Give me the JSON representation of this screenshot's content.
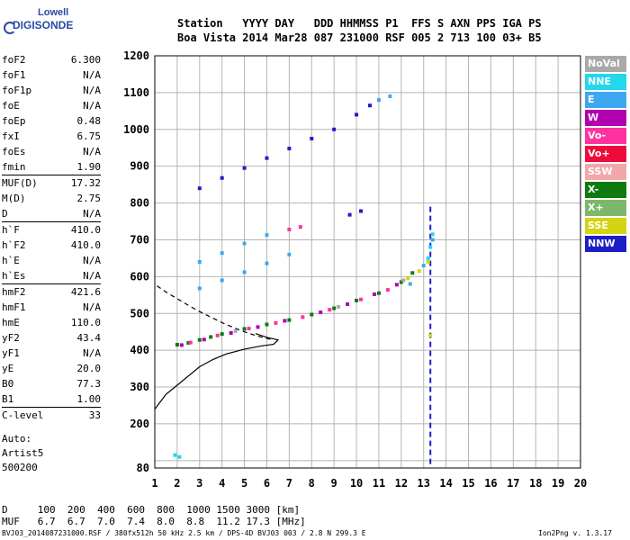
{
  "logo": {
    "line1": "Lowell",
    "line2": "DIGISONDE"
  },
  "header": {
    "row1": "Station   YYYY DAY   DDD HHMMSS P1  FFS S AXN PPS IGA PS",
    "row2": "Boa Vista 2014 Mar28 087 231000 RSF 005 2 713 100 03+ B5"
  },
  "params": [
    {
      "name": "foF2",
      "value": "6.300"
    },
    {
      "name": "foF1",
      "value": "N/A"
    },
    {
      "name": "foF1p",
      "value": "N/A"
    },
    {
      "name": "foE",
      "value": "N/A"
    },
    {
      "name": "foEp",
      "value": "0.48"
    },
    {
      "name": "fxI",
      "value": "6.75"
    },
    {
      "name": "foEs",
      "value": "N/A"
    },
    {
      "name": "fmin",
      "value": "1.90"
    },
    {
      "name": "MUF(D)",
      "value": "17.32",
      "sep": true
    },
    {
      "name": "M(D)",
      "value": "2.75"
    },
    {
      "name": "D",
      "value": "N/A"
    },
    {
      "name": "h`F",
      "value": "410.0",
      "sep": true
    },
    {
      "name": "h`F2",
      "value": "410.0"
    },
    {
      "name": "h`E",
      "value": "N/A"
    },
    {
      "name": "h`Es",
      "value": "N/A"
    },
    {
      "name": "hmF2",
      "value": "421.6",
      "sep": true
    },
    {
      "name": "hmF1",
      "value": "N/A"
    },
    {
      "name": "hmE",
      "value": "110.0"
    },
    {
      "name": "yF2",
      "value": "43.4"
    },
    {
      "name": "yF1",
      "value": "N/A"
    },
    {
      "name": "yE",
      "value": "20.0"
    },
    {
      "name": "B0",
      "value": "77.3"
    },
    {
      "name": "B1",
      "value": "1.00"
    },
    {
      "name": "C-level",
      "value": "33",
      "sep": true
    }
  ],
  "auto": {
    "line1": "Auto:",
    "line2": "Artist5",
    "line3": "500200"
  },
  "legend": [
    {
      "label": "NoVal",
      "color": "#a9a9a9"
    },
    {
      "label": "NNE",
      "color": "#22d7ee"
    },
    {
      "label": "E",
      "color": "#3da8f0"
    },
    {
      "label": "W",
      "color": "#b000b0"
    },
    {
      "label": "Vo-",
      "color": "#ff33a0"
    },
    {
      "label": "Vo+",
      "color": "#ee0a3a"
    },
    {
      "label": "SSW",
      "color": "#f2a8a8"
    },
    {
      "label": "X-",
      "color": "#107a10"
    },
    {
      "label": "X+",
      "color": "#7cb86c"
    },
    {
      "label": "SSE",
      "color": "#d4d414"
    },
    {
      "label": "NNW",
      "color": "#1e1ec8"
    }
  ],
  "muf_table": {
    "d_line": "D     100  200  400  600  800  1000 1500 3000 [km]",
    "muf_line": "MUF   6.7  6.7  7.0  7.4  8.0  8.8  11.2 17.3 [MHz]"
  },
  "footer": {
    "left": "BVJ03_2014087231000.RSF / 380fx512h 50 kHz 2.5 km / DPS-4D BVJ03 003 / 2.8 N 299.3 E",
    "right": "Ion2Png v. 1.3.17"
  },
  "chart_data": {
    "type": "scatter",
    "xlim": [
      1,
      20
    ],
    "ylim": [
      80,
      1200
    ],
    "x_ticks": [
      1,
      2,
      3,
      4,
      5,
      6,
      7,
      8,
      9,
      10,
      11,
      12,
      13,
      14,
      15,
      16,
      17,
      18,
      19,
      20
    ],
    "y_ticks": [
      80,
      100,
      200,
      300,
      400,
      500,
      600,
      700,
      800,
      900,
      1000,
      1100,
      1200
    ],
    "y_tick_labels": [
      "80",
      "",
      "200",
      "300",
      "400",
      "500",
      "600",
      "700",
      "800",
      "900",
      "1000",
      "1100",
      "1200"
    ],
    "grid": true,
    "series": [
      {
        "name": "NNW",
        "color": "#1e1ec8",
        "points": [
          [
            3.0,
            840
          ],
          [
            4.0,
            868
          ],
          [
            5.0,
            895
          ],
          [
            6.0,
            922
          ],
          [
            7.0,
            948
          ],
          [
            8.0,
            975
          ],
          [
            9.0,
            1000
          ],
          [
            10.0,
            1040
          ],
          [
            10.6,
            1065
          ],
          [
            9.7,
            768
          ],
          [
            10.2,
            778
          ]
        ]
      },
      {
        "name": "E",
        "color": "#3da8f0",
        "points": [
          [
            3.0,
            640
          ],
          [
            4.0,
            664
          ],
          [
            5.0,
            690
          ],
          [
            6.0,
            713
          ],
          [
            3.0,
            568
          ],
          [
            4.0,
            590
          ],
          [
            5.0,
            612
          ],
          [
            6.0,
            636
          ],
          [
            7.0,
            660
          ],
          [
            12.4,
            580
          ],
          [
            13.0,
            630
          ],
          [
            13.4,
            700
          ],
          [
            11.0,
            1080
          ],
          [
            11.5,
            1090
          ]
        ]
      },
      {
        "name": "NNE",
        "color": "#22d7ee",
        "points": [
          [
            13.2,
            650
          ],
          [
            13.3,
            680
          ],
          [
            13.4,
            715
          ],
          [
            1.9,
            115
          ],
          [
            2.1,
            110
          ]
        ]
      },
      {
        "name": "X-",
        "color": "#107a10",
        "points": [
          [
            2.0,
            415
          ],
          [
            2.5,
            420
          ],
          [
            3.0,
            428
          ],
          [
            3.5,
            436
          ],
          [
            4.0,
            444
          ],
          [
            5.0,
            458
          ],
          [
            6.0,
            470
          ],
          [
            7.0,
            482
          ],
          [
            8.0,
            497
          ],
          [
            9.0,
            514
          ],
          [
            10.0,
            535
          ],
          [
            11.0,
            555
          ],
          [
            12.0,
            585
          ],
          [
            12.5,
            610
          ]
        ]
      },
      {
        "name": "W",
        "color": "#b000b0",
        "points": [
          [
            2.2,
            414
          ],
          [
            3.2,
            429
          ],
          [
            4.4,
            447
          ],
          [
            5.6,
            463
          ],
          [
            6.8,
            480
          ],
          [
            8.4,
            503
          ],
          [
            9.6,
            525
          ],
          [
            10.8,
            552
          ],
          [
            11.8,
            578
          ]
        ]
      },
      {
        "name": "Vo-",
        "color": "#ff33a0",
        "points": [
          [
            2.6,
            421
          ],
          [
            3.8,
            440
          ],
          [
            5.2,
            459
          ],
          [
            6.4,
            474
          ],
          [
            7.6,
            490
          ],
          [
            8.8,
            510
          ],
          [
            10.2,
            538
          ],
          [
            11.4,
            564
          ],
          [
            7.0,
            728
          ],
          [
            7.5,
            735
          ]
        ]
      },
      {
        "name": "SSE",
        "color": "#d4d414",
        "points": [
          [
            12.3,
            595
          ],
          [
            12.8,
            615
          ],
          [
            13.2,
            640
          ],
          [
            13.3,
            440
          ]
        ]
      },
      {
        "name": "NoVal",
        "color": "#a9a9a9",
        "points": [
          [
            4.6,
            452
          ],
          [
            9.2,
            518
          ],
          [
            12.1,
            590
          ]
        ]
      }
    ],
    "curves": [
      {
        "name": "profile",
        "style": "solid",
        "points": [
          [
            1.0,
            240
          ],
          [
            1.5,
            280
          ],
          [
            2.0,
            305
          ],
          [
            2.5,
            330
          ],
          [
            3.0,
            355
          ],
          [
            3.6,
            375
          ],
          [
            4.2,
            390
          ],
          [
            5.0,
            403
          ],
          [
            5.8,
            412
          ],
          [
            6.3,
            416
          ],
          [
            6.5,
            428
          ],
          [
            6.0,
            435
          ],
          [
            5.5,
            445
          ]
        ]
      },
      {
        "name": "model",
        "style": "dashed",
        "points": [
          [
            1.1,
            575
          ],
          [
            1.5,
            558
          ],
          [
            2.0,
            540
          ],
          [
            2.5,
            522
          ],
          [
            3.0,
            505
          ],
          [
            3.5,
            490
          ],
          [
            4.0,
            475
          ],
          [
            4.5,
            462
          ],
          [
            5.0,
            450
          ],
          [
            5.5,
            440
          ],
          [
            6.0,
            432
          ],
          [
            6.3,
            428
          ]
        ]
      }
    ],
    "vertical_streak": {
      "x": 13.3,
      "y_from": 80,
      "y_to": 790,
      "color": "#1e1ec8"
    }
  }
}
